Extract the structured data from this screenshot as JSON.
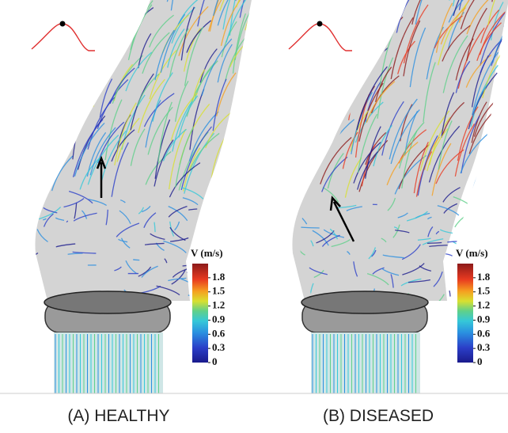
{
  "panels": [
    {
      "caption": "(A) HEALTHY",
      "colorbar": {
        "title": "V (m/s)",
        "range": [
          0,
          2.1
        ],
        "ticks": [
          1.8,
          1.5,
          1.2,
          0.9,
          0.6,
          0.3,
          0
        ]
      }
    },
    {
      "caption": "(B) DISEASED",
      "colorbar": {
        "title": "V (m/s)",
        "range": [
          0,
          2.1
        ],
        "ticks": [
          1.8,
          1.5,
          1.2,
          0.9,
          0.6,
          0.3,
          0
        ]
      }
    }
  ]
}
